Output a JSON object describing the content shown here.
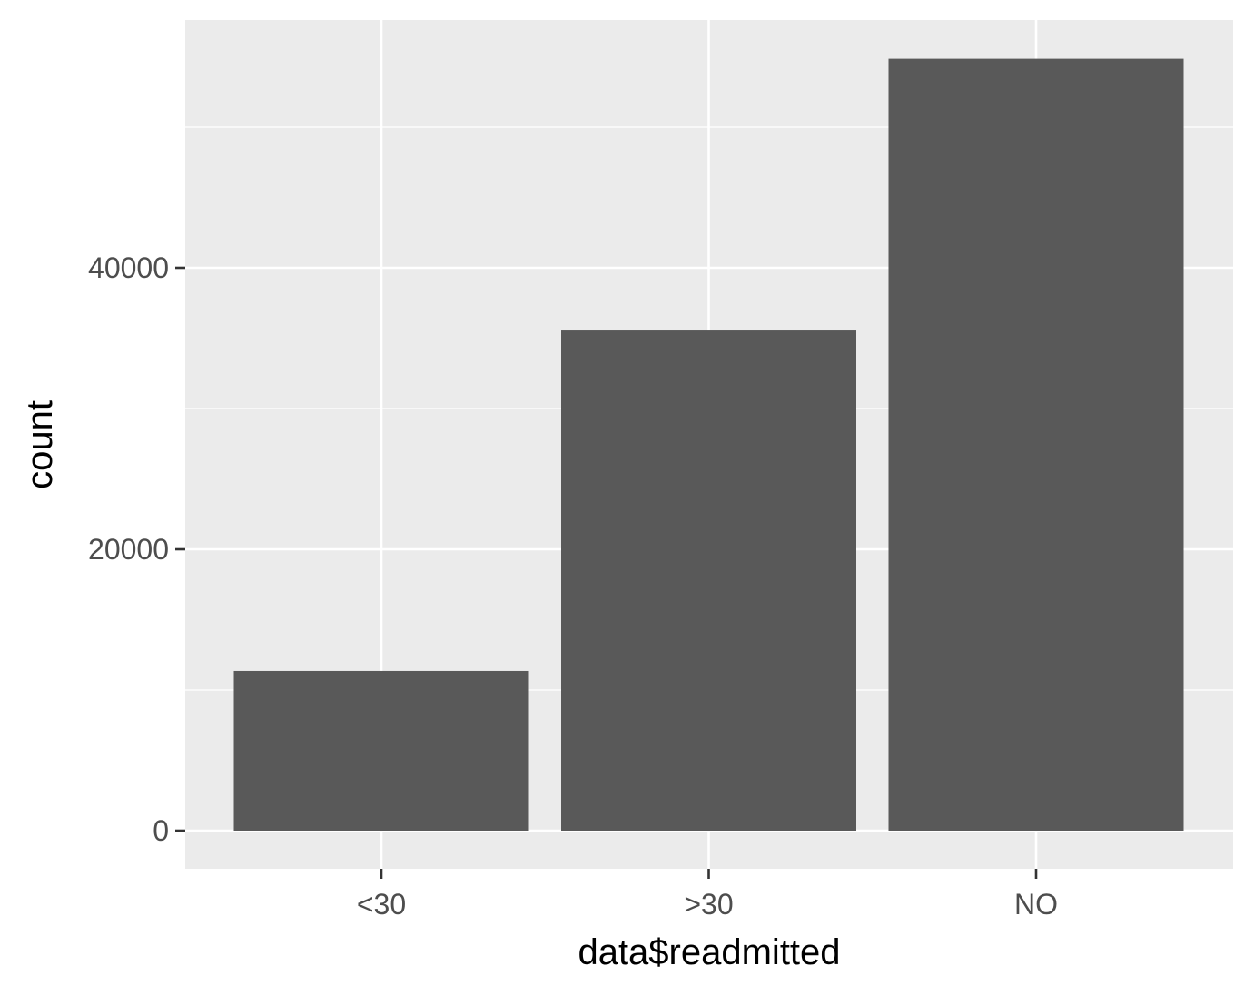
{
  "chart_data": {
    "type": "bar",
    "title": "",
    "xlabel": "data$readmitted",
    "ylabel": "count",
    "categories": [
      "<30",
      ">30",
      "NO"
    ],
    "values": [
      11357,
      35545,
      54864
    ],
    "ylim": [
      0,
      60355
    ],
    "y_ticks": [
      0,
      20000,
      40000
    ],
    "y_tick_labels": [
      "0",
      "20000",
      "40000"
    ],
    "grid": true,
    "legend": "none",
    "colors": {
      "panel_background": "#ebebeb",
      "grid": "#ffffff",
      "bar_fill": "#595959",
      "tick_mark": "#333333",
      "tick_label": "#4d4d4d",
      "axis_title": "#000000"
    }
  }
}
